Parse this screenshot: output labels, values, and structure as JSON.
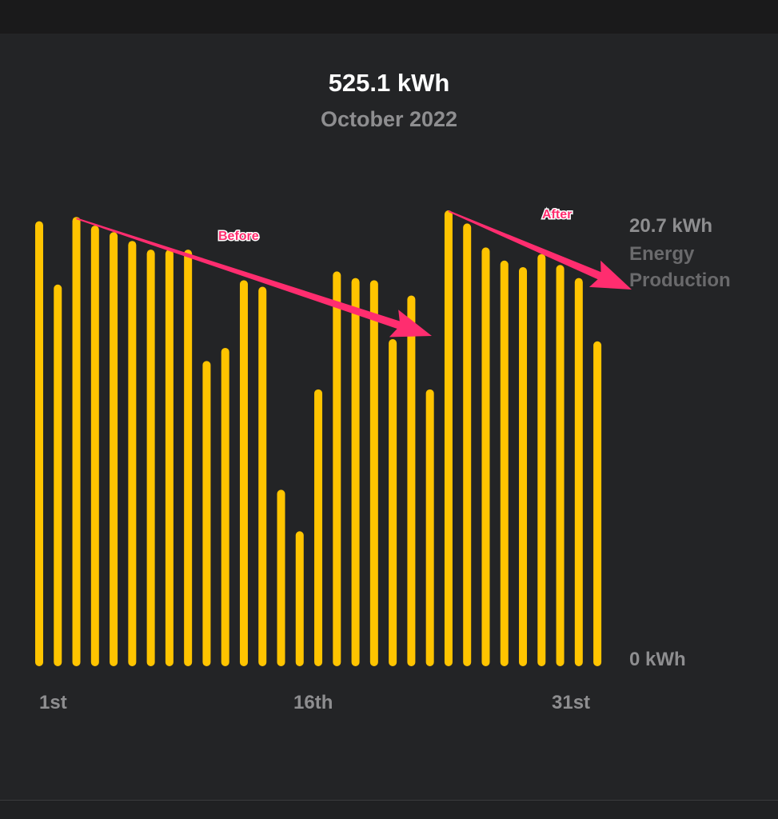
{
  "header": {
    "total": "525.1 kWh",
    "period": "October 2022"
  },
  "chart_data": {
    "type": "bar",
    "title": "525.1 kWh",
    "subtitle": "October 2022",
    "categories": [
      "1",
      "2",
      "3",
      "4",
      "5",
      "6",
      "7",
      "8",
      "9",
      "10",
      "11",
      "12",
      "13",
      "14",
      "15",
      "16",
      "17",
      "18",
      "19",
      "20",
      "21",
      "22",
      "23",
      "24",
      "25",
      "26",
      "27",
      "28",
      "29",
      "30",
      "31"
    ],
    "values": [
      20.2,
      17.3,
      20.4,
      20.0,
      19.7,
      19.3,
      18.9,
      18.9,
      18.9,
      13.8,
      14.4,
      17.5,
      17.2,
      7.9,
      6.0,
      12.5,
      17.9,
      17.6,
      17.5,
      14.8,
      16.8,
      12.5,
      20.7,
      20.1,
      19.0,
      18.4,
      18.1,
      18.7,
      18.2,
      17.6,
      14.7
    ],
    "ylim": [
      0,
      20.7
    ],
    "x_tick_labels": [
      {
        "day": 1,
        "label": "1st"
      },
      {
        "day": 16,
        "label": "16th"
      },
      {
        "day": 31,
        "label": "31st"
      }
    ],
    "y_tick_labels": {
      "max": "20.7 kWh",
      "min": "0 kWh"
    },
    "ylabel_lines": [
      "Energy",
      "Production"
    ],
    "bar_color": "#ffc400",
    "annotations": [
      {
        "text": "Before",
        "from_day": 3,
        "to_day": 22,
        "color": "#ff2d6f"
      },
      {
        "text": "After",
        "from_day": 23,
        "to_day": 31,
        "color": "#ff2d6f"
      }
    ]
  }
}
